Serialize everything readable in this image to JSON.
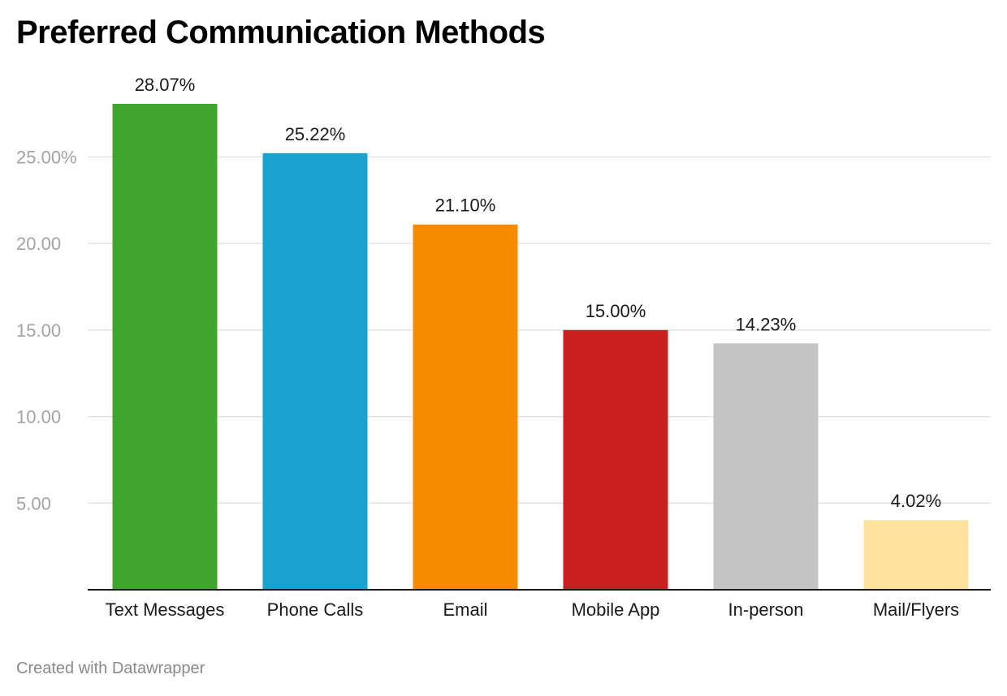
{
  "title": "Preferred Communication Methods",
  "footer": "Created with Datawrapper",
  "chart_data": {
    "type": "bar",
    "title": "Preferred Communication Methods",
    "xlabel": "",
    "ylabel": "",
    "ylim": [
      0,
      28.07
    ],
    "grid": true,
    "y_ticks": [
      5,
      10,
      15,
      20,
      25
    ],
    "y_tick_labels": [
      "5.00",
      "10.00",
      "15.00",
      "20.00",
      "25.00%"
    ],
    "categories": [
      "Text Messages",
      "Phone Calls",
      "Email",
      "Mobile App",
      "In-person",
      "Mail/Flyers"
    ],
    "values": [
      28.07,
      25.22,
      21.1,
      15.0,
      14.23,
      4.02
    ],
    "value_labels": [
      "28.07%",
      "25.22%",
      "21.10%",
      "15.00%",
      "14.23%",
      "4.02%"
    ],
    "colors": [
      "#40a52c",
      "#1aa2cf",
      "#f78b00",
      "#c81f1f",
      "#c4c4c4",
      "#fee39e"
    ]
  }
}
